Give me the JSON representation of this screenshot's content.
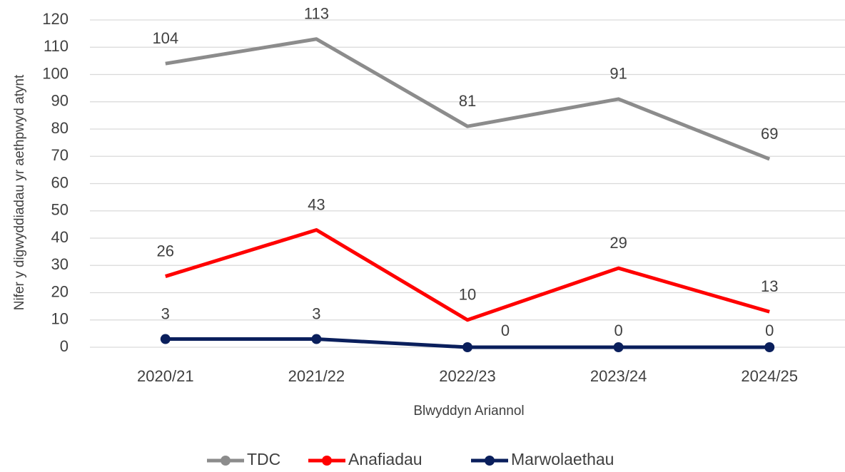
{
  "chart_data": {
    "type": "line",
    "x_label": "Blwyddyn Ariannol",
    "y_label": "Nifer y digwyddiadau yr aethpwyd atynt",
    "categories": [
      "2020/21",
      "2021/22",
      "2022/23",
      "2023/24",
      "2024/25"
    ],
    "series": [
      {
        "name": "TDC",
        "color": "#8c8c8c",
        "values": [
          104,
          113,
          81,
          91,
          69
        ],
        "marker": false
      },
      {
        "name": "Anafiadau",
        "color": "#ff0000",
        "values": [
          26,
          43,
          10,
          29,
          13
        ],
        "marker": false
      },
      {
        "name": "Marwolaethau",
        "color": "#0a1f5c",
        "values": [
          3,
          3,
          0,
          0,
          0
        ],
        "marker": true
      }
    ],
    "ylim": [
      0,
      120
    ],
    "yticks": [
      0,
      10,
      20,
      30,
      40,
      50,
      60,
      70,
      80,
      90,
      100,
      110,
      120
    ],
    "grid": true,
    "legend": "bottom"
  }
}
